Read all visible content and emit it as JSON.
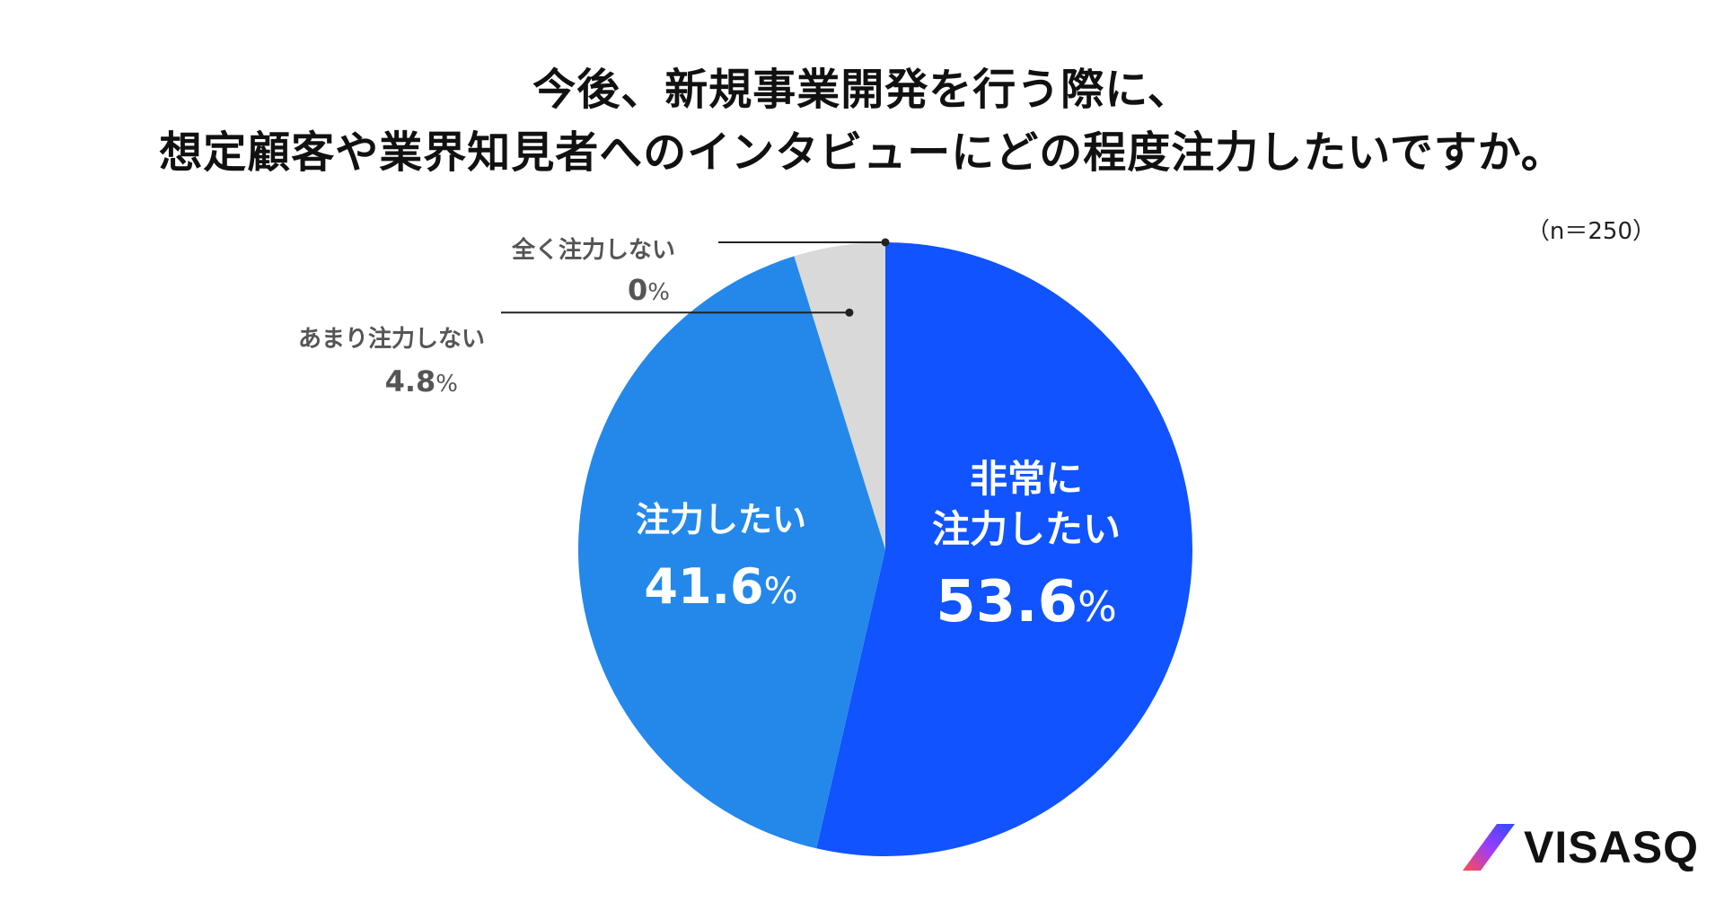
{
  "title_lines": [
    "今後、新規事業開発を行う際に、",
    "想定顧客や業界知見者へのインタビューにどの程度注力したいですか。"
  ],
  "sample_size": "（n＝250）",
  "logo_text": "VISASQ",
  "colors": {
    "very_much": "#1053FF",
    "want": "#2388EA",
    "not_much": "#D9D9D9",
    "not_at_all": "#D9D9D9",
    "outside_label": "#555555",
    "leader_line": "#222222",
    "inside_label": "#ffffff"
  },
  "chart_data": {
    "type": "pie",
    "title": "今後、新規事業開発を行う際に、想定顧客や業界知見者へのインタビューにどの程度注力したいですか。",
    "start": "12 o'clock, clockwise",
    "slices": [
      {
        "label": "非常に注力したい",
        "label_lines": [
          "非常に",
          "注力したい"
        ],
        "value": 53.6,
        "value_text": "53.6",
        "unit": "%",
        "color": "#1053FF",
        "label_position": "inside"
      },
      {
        "label": "注力したい",
        "label_lines": [
          "注力したい"
        ],
        "value": 41.6,
        "value_text": "41.6",
        "unit": "%",
        "color": "#2388EA",
        "label_position": "inside"
      },
      {
        "label": "あまり注力しない",
        "label_lines": [
          "あまり注力しない"
        ],
        "value": 4.8,
        "value_text": "4.8",
        "unit": "%",
        "color": "#D9D9D9",
        "label_position": "outside"
      },
      {
        "label": "全く注力しない",
        "label_lines": [
          "全く注力しない"
        ],
        "value": 0,
        "value_text": "0",
        "unit": "%",
        "color": "#D9D9D9",
        "label_position": "outside"
      }
    ],
    "legend": "none"
  }
}
